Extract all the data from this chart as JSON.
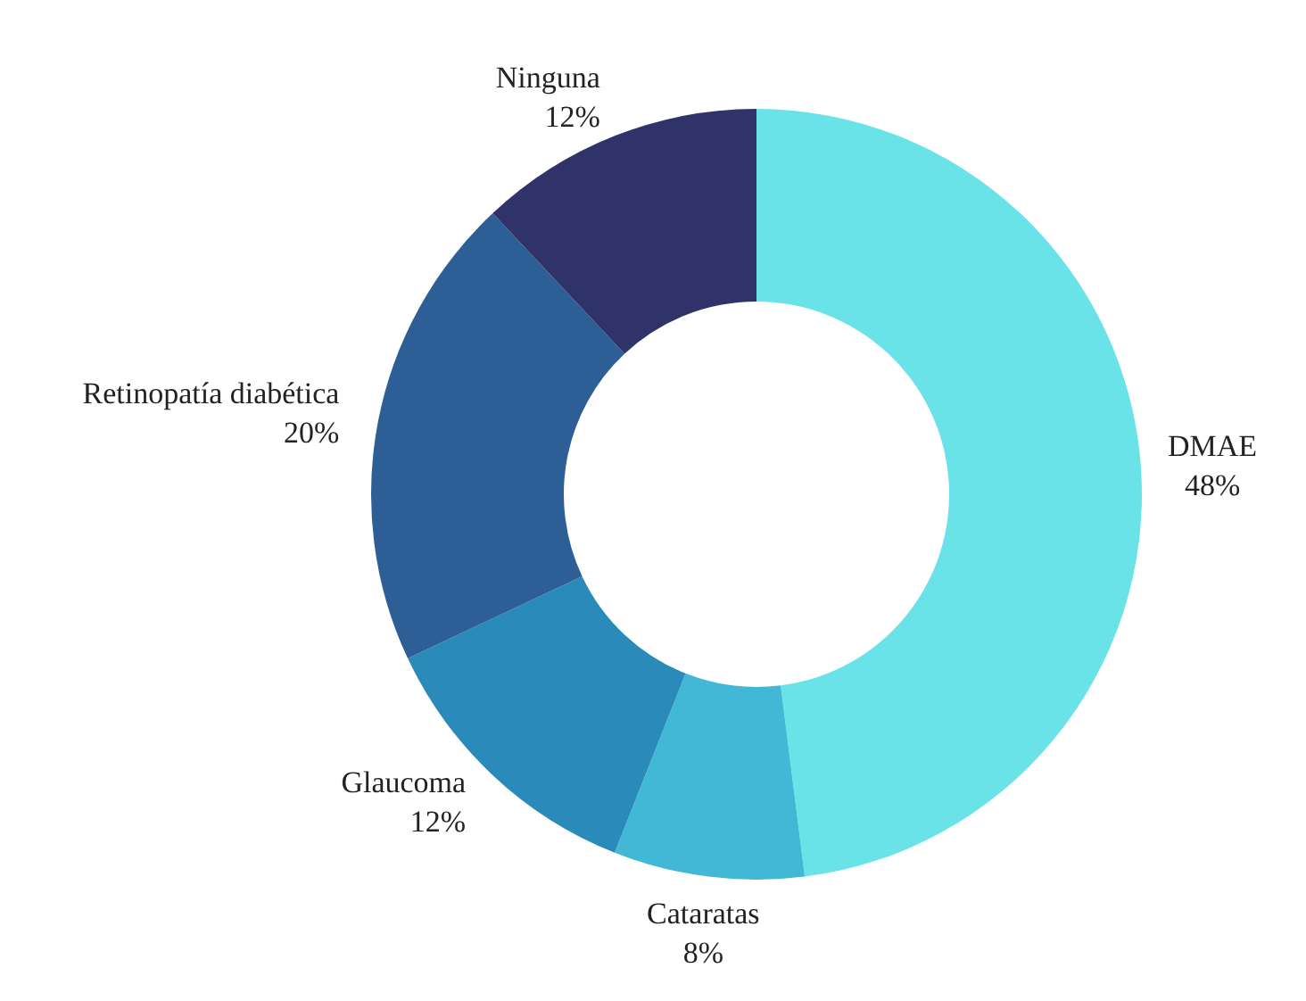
{
  "chart_data": {
    "type": "donut",
    "categories": [
      "DMAE",
      "Cataratas",
      "Glaucoma",
      "Retinopatía diabética",
      "Ninguna"
    ],
    "values": [
      48,
      8,
      12,
      20,
      12
    ],
    "colors": [
      "#6ae3e8",
      "#43b8d6",
      "#2a8ab9",
      "#2d5f96",
      "#2f3369"
    ],
    "value_labels": [
      "48%",
      "8%",
      "12%",
      "20%",
      "12%"
    ],
    "legend": false
  }
}
